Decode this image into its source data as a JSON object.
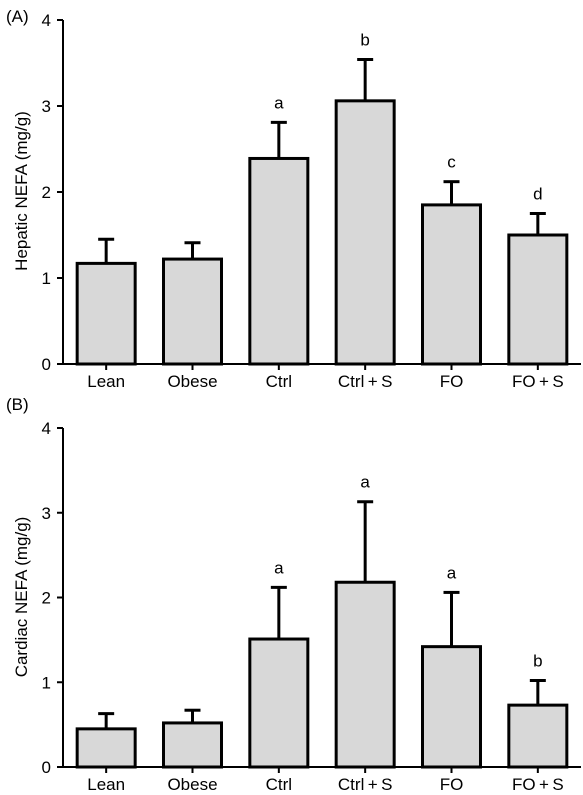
{
  "chart_data": [
    {
      "type": "bar",
      "panel_label": "(A)",
      "ylabel": "Hepatic NEFA (mg/g)",
      "categories": [
        "Lean",
        "Obese",
        "Ctrl",
        "Ctrl + S",
        "FO",
        "FO + S"
      ],
      "values": [
        1.17,
        1.22,
        2.39,
        3.06,
        1.85,
        1.5
      ],
      "errors": [
        0.28,
        0.19,
        0.42,
        0.48,
        0.27,
        0.25
      ],
      "significance": [
        "",
        "",
        "a",
        "b",
        "c",
        "d"
      ],
      "ylim": [
        0,
        4
      ],
      "yticks": [
        "0",
        "1",
        "2",
        "3",
        "4"
      ],
      "bar_color": "#d8d8d8",
      "grid": false
    },
    {
      "type": "bar",
      "panel_label": "(B)",
      "ylabel": "Cardiac NEFA (mg/g)",
      "categories": [
        "Lean",
        "Obese",
        "Ctrl",
        "Ctrl + S",
        "FO",
        "FO + S"
      ],
      "values": [
        0.45,
        0.52,
        1.51,
        2.18,
        1.42,
        0.73
      ],
      "errors": [
        0.18,
        0.15,
        0.61,
        0.95,
        0.64,
        0.29
      ],
      "significance": [
        "",
        "",
        "a",
        "a",
        "a",
        "b"
      ],
      "ylim": [
        0,
        4
      ],
      "yticks": [
        "0",
        "1",
        "2",
        "3",
        "4"
      ],
      "bar_color": "#d8d8d8",
      "grid": false
    }
  ]
}
